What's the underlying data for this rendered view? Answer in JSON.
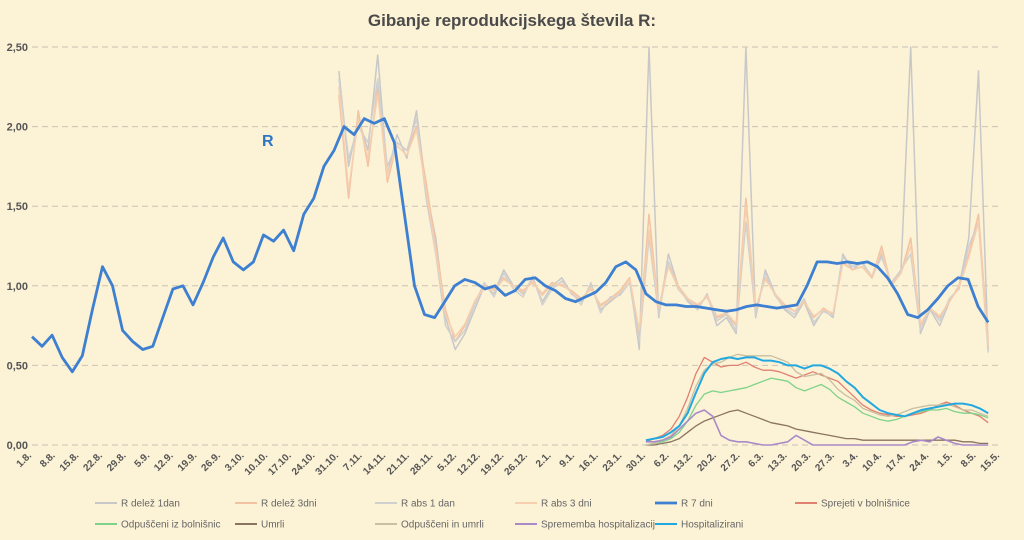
{
  "chart_data": {
    "type": "line",
    "title": "Gibanje reprodukcijskega števila R:",
    "annotation": {
      "text": "R",
      "color": "#2e75c6"
    },
    "ylim": [
      0,
      2.5
    ],
    "yticks": [
      "0,00",
      "0,50",
      "1,00",
      "1,50",
      "2,00",
      "2,50"
    ],
    "grid": "horizontal dashed",
    "legend_position": "bottom",
    "x_tick_labels": [
      "1.8.",
      "8.8.",
      "15.8.",
      "22.8.",
      "29.8.",
      "5.9.",
      "12.9.",
      "19.9.",
      "26.9.",
      "3.10.",
      "10.10.",
      "17.10.",
      "24.10.",
      "31.10.",
      "7.11.",
      "14.11.",
      "21.11.",
      "28.11.",
      "5.12.",
      "12.12.",
      "19.12.",
      "26.12.",
      "2.1.",
      "9.1.",
      "16.1.",
      "23.1.",
      "30.1.",
      "6.2.",
      "13.2.",
      "20.2.",
      "27.2.",
      "6.3.",
      "13.3.",
      "20.3.",
      "27.3.",
      "3.4.",
      "10.4.",
      "17.4.",
      "24.4.",
      "1.5.",
      "8.5.",
      "15.5."
    ],
    "series": [
      {
        "name": "R delež 1dan",
        "color": "#c8c8c8",
        "width": 1.5,
        "start": 13,
        "values": [
          2.35,
          1.75,
          2.05,
          1.85,
          2.45,
          1.7,
          1.95,
          1.8,
          2.1,
          1.6,
          1.3,
          0.8,
          0.6,
          0.7,
          0.85,
          1.0,
          0.95,
          1.1,
          1.0,
          0.95,
          1.05,
          0.9,
          1.0,
          1.05,
          0.95,
          0.9,
          1.0,
          0.85,
          0.9,
          0.95,
          1.05,
          0.6,
          2.5,
          0.8,
          1.2,
          1.0,
          0.9,
          0.85,
          0.95,
          0.75,
          0.8,
          0.7,
          2.5,
          0.8,
          1.1,
          0.95,
          0.85,
          0.8,
          0.9,
          0.75,
          0.85,
          0.8,
          1.2,
          1.1,
          1.15,
          1.05,
          1.2,
          1.0,
          1.1,
          2.5,
          0.7,
          0.85,
          0.75,
          0.9,
          1.0,
          1.3,
          2.35,
          0.6
        ]
      },
      {
        "name": "R delež 3dni",
        "color": "#f2c2a2",
        "width": 1.5,
        "start": 13,
        "values": [
          2.2,
          1.55,
          2.1,
          1.75,
          2.25,
          1.65,
          1.9,
          1.85,
          2.0,
          1.65,
          1.25,
          0.85,
          0.65,
          0.75,
          0.9,
          1.0,
          0.98,
          1.05,
          1.0,
          0.97,
          1.02,
          0.95,
          1.02,
          1.0,
          0.97,
          0.92,
          0.98,
          0.88,
          0.92,
          0.97,
          1.05,
          0.7,
          1.45,
          0.85,
          1.15,
          1.0,
          0.92,
          0.88,
          0.93,
          0.8,
          0.82,
          0.75,
          1.55,
          0.85,
          1.05,
          0.95,
          0.88,
          0.84,
          0.9,
          0.8,
          0.86,
          0.82,
          1.15,
          1.1,
          1.12,
          1.05,
          1.25,
          1.0,
          1.08,
          1.3,
          0.75,
          0.85,
          0.8,
          0.9,
          1.0,
          1.2,
          1.45,
          0.65
        ]
      },
      {
        "name": "R abs 1 dan",
        "color": "#d0d0d0",
        "width": 1.5,
        "start": 13,
        "values": [
          2.3,
          1.8,
          2.0,
          1.9,
          2.3,
          1.75,
          1.9,
          1.85,
          2.05,
          1.55,
          1.2,
          0.75,
          0.65,
          0.72,
          0.88,
          1.02,
          0.93,
          1.08,
          0.98,
          0.93,
          1.06,
          0.88,
          0.98,
          1.03,
          0.96,
          0.88,
          1.02,
          0.83,
          0.93,
          0.94,
          1.02,
          0.65,
          1.3,
          0.82,
          1.15,
          0.98,
          0.91,
          0.86,
          0.94,
          0.78,
          0.82,
          0.72,
          1.4,
          0.82,
          1.08,
          0.94,
          0.86,
          0.82,
          0.92,
          0.77,
          0.84,
          0.81,
          1.18,
          1.12,
          1.14,
          1.06,
          1.18,
          1.02,
          1.1,
          1.2,
          0.72,
          0.86,
          0.78,
          0.92,
          0.98,
          1.25,
          1.4,
          0.58
        ]
      },
      {
        "name": "R abs 3 dni",
        "color": "#f5cfae",
        "width": 1.5,
        "start": 13,
        "values": [
          2.25,
          1.6,
          2.05,
          1.8,
          2.2,
          1.7,
          1.88,
          1.82,
          1.98,
          1.6,
          1.22,
          0.82,
          0.68,
          0.76,
          0.9,
          0.99,
          0.97,
          1.04,
          1.0,
          0.96,
          1.03,
          0.94,
          1.01,
          1.01,
          0.96,
          0.91,
          0.99,
          0.87,
          0.91,
          0.96,
          1.04,
          0.72,
          1.35,
          0.86,
          1.12,
          0.99,
          0.92,
          0.87,
          0.94,
          0.81,
          0.83,
          0.76,
          1.5,
          0.86,
          1.04,
          0.95,
          0.87,
          0.84,
          0.9,
          0.81,
          0.85,
          0.83,
          1.14,
          1.1,
          1.12,
          1.06,
          1.22,
          1.01,
          1.08,
          1.25,
          0.76,
          0.86,
          0.81,
          0.9,
          0.99,
          1.18,
          1.4,
          0.62
        ]
      },
      {
        "name": "R 7 dni",
        "color": "#3d7fd0",
        "width": 2.8,
        "start": 0,
        "values": [
          0.68,
          0.62,
          0.69,
          0.55,
          0.46,
          0.56,
          0.85,
          1.12,
          1.0,
          0.72,
          0.65,
          0.6,
          0.62,
          0.8,
          0.98,
          1.0,
          0.88,
          1.02,
          1.18,
          1.3,
          1.15,
          1.1,
          1.15,
          1.32,
          1.28,
          1.35,
          1.22,
          1.45,
          1.55,
          1.75,
          1.85,
          2.0,
          1.95,
          2.05,
          2.02,
          2.05,
          1.9,
          1.45,
          1.0,
          0.82,
          0.8,
          0.9,
          1.0,
          1.04,
          1.02,
          0.98,
          1.0,
          0.94,
          0.97,
          1.04,
          1.05,
          1.0,
          0.97,
          0.92,
          0.9,
          0.93,
          0.96,
          1.02,
          1.12,
          1.15,
          1.1,
          0.95,
          0.9,
          0.88,
          0.88,
          0.87,
          0.87,
          0.86,
          0.85,
          0.84,
          0.85,
          0.87,
          0.88,
          0.87,
          0.86,
          0.87,
          0.88,
          1.0,
          1.15,
          1.15,
          1.14,
          1.15,
          1.14,
          1.15,
          1.12,
          1.05,
          0.95,
          0.82,
          0.8,
          0.85,
          0.92,
          1.0,
          1.05,
          1.04,
          0.87,
          0.77
        ]
      },
      {
        "name": "Sprejeti v bolnišnice",
        "color": "#e08070",
        "width": 1.3,
        "start": 26,
        "values": [
          0.02,
          0.04,
          0.06,
          0.1,
          0.18,
          0.3,
          0.45,
          0.55,
          0.52,
          0.49,
          0.5,
          0.5,
          0.52,
          0.49,
          0.47,
          0.47,
          0.46,
          0.44,
          0.42,
          0.44,
          0.46,
          0.44,
          0.42,
          0.4,
          0.35,
          0.3,
          0.25,
          0.22,
          0.2,
          0.19,
          0.18,
          0.18,
          0.19,
          0.2,
          0.22,
          0.25,
          0.27,
          0.25,
          0.22,
          0.2,
          0.18,
          0.14
        ]
      },
      {
        "name": "Odpuščeni iz bolnišnic",
        "color": "#7dd38a",
        "width": 1.3,
        "start": 26,
        "values": [
          0.0,
          0.01,
          0.02,
          0.04,
          0.08,
          0.15,
          0.25,
          0.32,
          0.34,
          0.33,
          0.34,
          0.35,
          0.36,
          0.38,
          0.4,
          0.42,
          0.41,
          0.4,
          0.36,
          0.34,
          0.36,
          0.38,
          0.35,
          0.3,
          0.27,
          0.24,
          0.2,
          0.18,
          0.16,
          0.15,
          0.16,
          0.18,
          0.2,
          0.21,
          0.22,
          0.22,
          0.23,
          0.21,
          0.2,
          0.2,
          0.19,
          0.17
        ]
      },
      {
        "name": "Umrli",
        "color": "#8a7460",
        "width": 1.3,
        "start": 26,
        "values": [
          0.0,
          0.0,
          0.01,
          0.02,
          0.04,
          0.08,
          0.12,
          0.15,
          0.17,
          0.19,
          0.21,
          0.22,
          0.2,
          0.18,
          0.16,
          0.14,
          0.13,
          0.12,
          0.1,
          0.09,
          0.08,
          0.07,
          0.06,
          0.05,
          0.04,
          0.04,
          0.03,
          0.03,
          0.03,
          0.03,
          0.03,
          0.03,
          0.03,
          0.03,
          0.03,
          0.03,
          0.03,
          0.03,
          0.02,
          0.02,
          0.01,
          0.01
        ]
      },
      {
        "name": "Odpuščeni in umrli",
        "color": "#c8c0a0",
        "width": 1.3,
        "start": 26,
        "values": [
          0.0,
          0.01,
          0.03,
          0.06,
          0.12,
          0.23,
          0.37,
          0.47,
          0.51,
          0.52,
          0.55,
          0.57,
          0.56,
          0.56,
          0.56,
          0.56,
          0.54,
          0.52,
          0.46,
          0.43,
          0.44,
          0.45,
          0.41,
          0.35,
          0.31,
          0.28,
          0.23,
          0.21,
          0.19,
          0.18,
          0.19,
          0.21,
          0.23,
          0.24,
          0.25,
          0.25,
          0.26,
          0.24,
          0.22,
          0.22,
          0.2,
          0.18
        ]
      },
      {
        "name": "Sprememba hospitalizacij",
        "color": "#a98ac8",
        "width": 1.6,
        "start": 26,
        "values": [
          0.02,
          0.02,
          0.03,
          0.05,
          0.1,
          0.15,
          0.2,
          0.22,
          0.18,
          0.06,
          0.03,
          0.02,
          0.02,
          0.01,
          0.0,
          0.0,
          0.01,
          0.02,
          0.06,
          0.03,
          0.0,
          0.0,
          0.0,
          0.0,
          0.0,
          0.0,
          0.0,
          0.0,
          0.0,
          0.0,
          0.0,
          0.0,
          0.02,
          0.03,
          0.02,
          0.05,
          0.03,
          0.01,
          0.0,
          0.0,
          0.0,
          0.0
        ]
      },
      {
        "name": "Hospitalizirani",
        "color": "#22a8e0",
        "width": 2.0,
        "start": 26,
        "values": [
          0.03,
          0.04,
          0.05,
          0.08,
          0.12,
          0.2,
          0.33,
          0.45,
          0.52,
          0.54,
          0.55,
          0.54,
          0.55,
          0.55,
          0.53,
          0.53,
          0.52,
          0.5,
          0.5,
          0.48,
          0.5,
          0.5,
          0.48,
          0.45,
          0.4,
          0.36,
          0.3,
          0.26,
          0.22,
          0.2,
          0.19,
          0.18,
          0.2,
          0.22,
          0.23,
          0.24,
          0.25,
          0.26,
          0.26,
          0.25,
          0.23,
          0.2
        ]
      }
    ]
  }
}
